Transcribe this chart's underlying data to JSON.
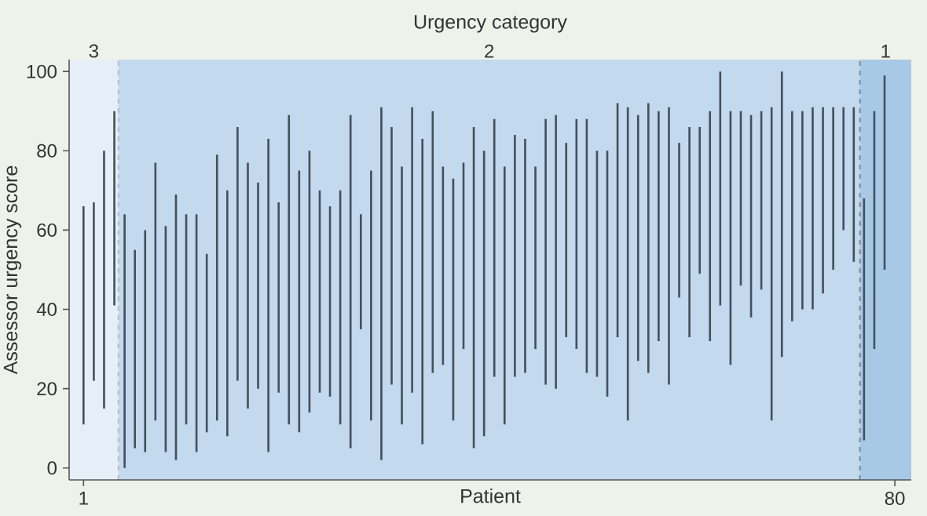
{
  "chart_data": {
    "type": "bar",
    "xlabel": "Patient",
    "ylabel": "Assessor urgency score",
    "x2label": "Urgency category",
    "xlim": [
      -0.4,
      81.6
    ],
    "xticks": [
      1,
      80
    ],
    "ylim": [
      -3,
      103
    ],
    "yticks": [
      0,
      20,
      40,
      60,
      80,
      100
    ],
    "color": "#44505c",
    "x": [
      1,
      2,
      3,
      4,
      5,
      6,
      7,
      8,
      9,
      10,
      11,
      12,
      13,
      14,
      15,
      16,
      17,
      18,
      19,
      20,
      21,
      22,
      23,
      24,
      25,
      26,
      27,
      28,
      29,
      30,
      31,
      32,
      33,
      34,
      35,
      36,
      37,
      38,
      39,
      40,
      41,
      42,
      43,
      44,
      45,
      46,
      47,
      48,
      49,
      50,
      51,
      52,
      53,
      54,
      55,
      56,
      57,
      58,
      59,
      60,
      61,
      62,
      63,
      64,
      65,
      66,
      67,
      68,
      69,
      70,
      71,
      72,
      73,
      74,
      75,
      76,
      77,
      78,
      79
    ],
    "base": [
      11,
      22,
      15,
      41,
      0,
      5,
      4,
      12,
      4,
      2,
      11,
      4,
      9,
      12,
      8,
      22,
      15,
      20,
      4,
      19,
      11,
      9,
      14,
      19,
      18,
      11,
      5,
      35,
      12,
      2,
      21,
      11,
      19,
      6,
      24,
      26,
      12,
      30,
      5,
      8,
      23,
      11,
      23,
      24,
      30,
      21,
      20,
      33,
      30,
      24,
      23,
      18,
      33,
      12,
      27,
      24,
      32,
      21,
      43,
      33,
      49,
      32,
      41,
      26,
      46,
      38,
      45,
      12,
      28,
      37,
      40,
      40,
      44,
      50,
      60,
      52,
      7,
      30,
      50
    ],
    "values": [
      55,
      45,
      65,
      49,
      64,
      50,
      56,
      65,
      57,
      67,
      53,
      60,
      45,
      67,
      62,
      64,
      62,
      52,
      79,
      48,
      78,
      66,
      66,
      51,
      48,
      59,
      84,
      29,
      63,
      89,
      65,
      65,
      72,
      77,
      66,
      50,
      61,
      47,
      81,
      72,
      65,
      65,
      61,
      59,
      46,
      67,
      69,
      49,
      58,
      64,
      57,
      62,
      59,
      79,
      62,
      68,
      58,
      70,
      39,
      53,
      37,
      58,
      59,
      64,
      44,
      51,
      45,
      79,
      72,
      53,
      50,
      51,
      47,
      41,
      31,
      39,
      61,
      60,
      49
    ],
    "bands": [
      {
        "axis": "x",
        "from": -0.4,
        "to": 4.4,
        "color": "#e6eff8",
        "label": "3"
      },
      {
        "axis": "x",
        "from": 4.4,
        "to": 76.6,
        "color": "#c3d9ed",
        "label": "2"
      },
      {
        "axis": "x",
        "from": 76.6,
        "to": 81.6,
        "color": "#a7c9e6",
        "label": "1"
      }
    ],
    "ref_lines": [
      {
        "axis": "x",
        "value": 4.4,
        "color": "#b4bcc4",
        "line_style": "dashed"
      },
      {
        "axis": "x",
        "value": 76.6,
        "color": "#7d8a96",
        "line_style": "dashed"
      }
    ]
  }
}
